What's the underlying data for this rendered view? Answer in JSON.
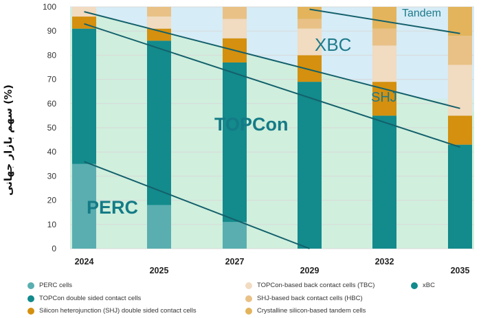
{
  "chart_data": {
    "type": "bar",
    "stacked": true,
    "ylabel": "سهم بازار جهانی (%)",
    "ylim": [
      0,
      100
    ],
    "yticks": [
      0,
      10,
      20,
      30,
      40,
      50,
      60,
      70,
      80,
      90,
      100
    ],
    "grid": true,
    "categories": [
      "2024",
      "2025",
      "2027",
      "2029",
      "2032",
      "2035"
    ],
    "series": [
      {
        "name": "PERC cells",
        "color": "#5aaeb0",
        "values": [
          35,
          18,
          11,
          0,
          0,
          0
        ]
      },
      {
        "name": "TOPCon double sided contact cells",
        "color": "#138a8c",
        "values": [
          56,
          68,
          66,
          69,
          55,
          43
        ]
      },
      {
        "name": "Silicon heterojunction (SHJ) double sided contact cells",
        "color": "#d4900e",
        "values": [
          5,
          5,
          10,
          11,
          14,
          12
        ]
      },
      {
        "name": "TOPCon-based back contact cells (TBC)",
        "color": "#f1dbc1",
        "values": [
          4,
          5,
          8,
          11,
          15,
          21
        ]
      },
      {
        "name": "SHJ-based back contact cells (HBC)",
        "color": "#e9c186",
        "values": [
          0,
          4,
          5,
          4,
          7,
          12
        ]
      },
      {
        "name": "Crystalline silicon-based tandem cells",
        "color": "#e3b45c",
        "values": [
          0,
          0,
          0,
          5,
          9,
          12
        ]
      }
    ],
    "legend": {
      "position": "bottom",
      "entries": [
        {
          "label": "PERC cells",
          "color": "#5aaeb0"
        },
        {
          "label": "TOPCon double sided contact cells",
          "color": "#138a8c"
        },
        {
          "label": "Silicon heterojunction (SHJ) double sided contact cells",
          "color": "#d4900e"
        },
        {
          "label": "TOPCon-based back contact cells (TBC)",
          "color": "#f1dbc1"
        },
        {
          "label": "SHJ-based back contact cells (HBC)",
          "color": "#e9c186"
        },
        {
          "label": "Crystalline silicon-based tandem cells",
          "color": "#e3b45c"
        },
        {
          "label": "xBC",
          "color": "#138a8c"
        }
      ]
    },
    "region_labels": [
      {
        "text": "Tandem",
        "color": "#1d7a8a"
      },
      {
        "text": "XBC",
        "color": "#1d7a8a"
      },
      {
        "text": "SHJ",
        "color": "#1d7a8a"
      },
      {
        "text": "TOPCon",
        "color": "#147b86"
      },
      {
        "text": "PERC",
        "color": "#147b86"
      }
    ],
    "region_fill_colors": {
      "upper": "#d6ecf6",
      "middle": "#cfeedd",
      "lower": "#d2f0dc"
    },
    "trend_line_color": "#13606b",
    "trend_lines": [
      {
        "from": [
          "2024",
          36
        ],
        "to": [
          "2029",
          0
        ]
      },
      {
        "from": [
          "2024",
          93
        ],
        "to": [
          "2035",
          42
        ]
      },
      {
        "from": [
          "2024",
          98
        ],
        "to": [
          "2035",
          58
        ]
      },
      {
        "from": [
          "2029",
          99
        ],
        "to": [
          "2035",
          89
        ]
      }
    ]
  }
}
